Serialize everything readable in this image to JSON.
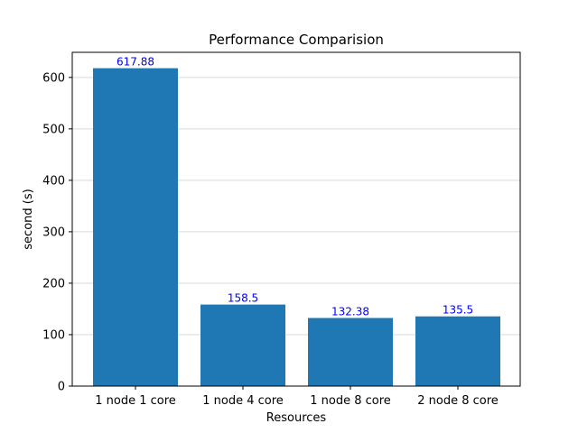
{
  "chart_data": {
    "type": "bar",
    "title": "Performance Comparision",
    "xlabel": "Resources",
    "ylabel": "second (s)",
    "categories": [
      "1 node 1 core",
      "1 node 4 core",
      "1 node 8 core",
      "2 node 8 core"
    ],
    "values": [
      617.88,
      158.5,
      132.38,
      135.5
    ],
    "data_labels": [
      "617.88",
      "158.5",
      "132.38",
      "135.5"
    ],
    "ylim": [
      0,
      648.774
    ],
    "yticks": [
      0,
      100,
      200,
      300,
      400,
      500,
      600
    ],
    "ytick_labels": [
      "0",
      "100",
      "200",
      "300",
      "400",
      "500",
      "600"
    ],
    "grid": "horizontal",
    "bar_color": "#1f77b4",
    "label_color": "#0000ff",
    "grid_color": "#d9d9d9"
  }
}
